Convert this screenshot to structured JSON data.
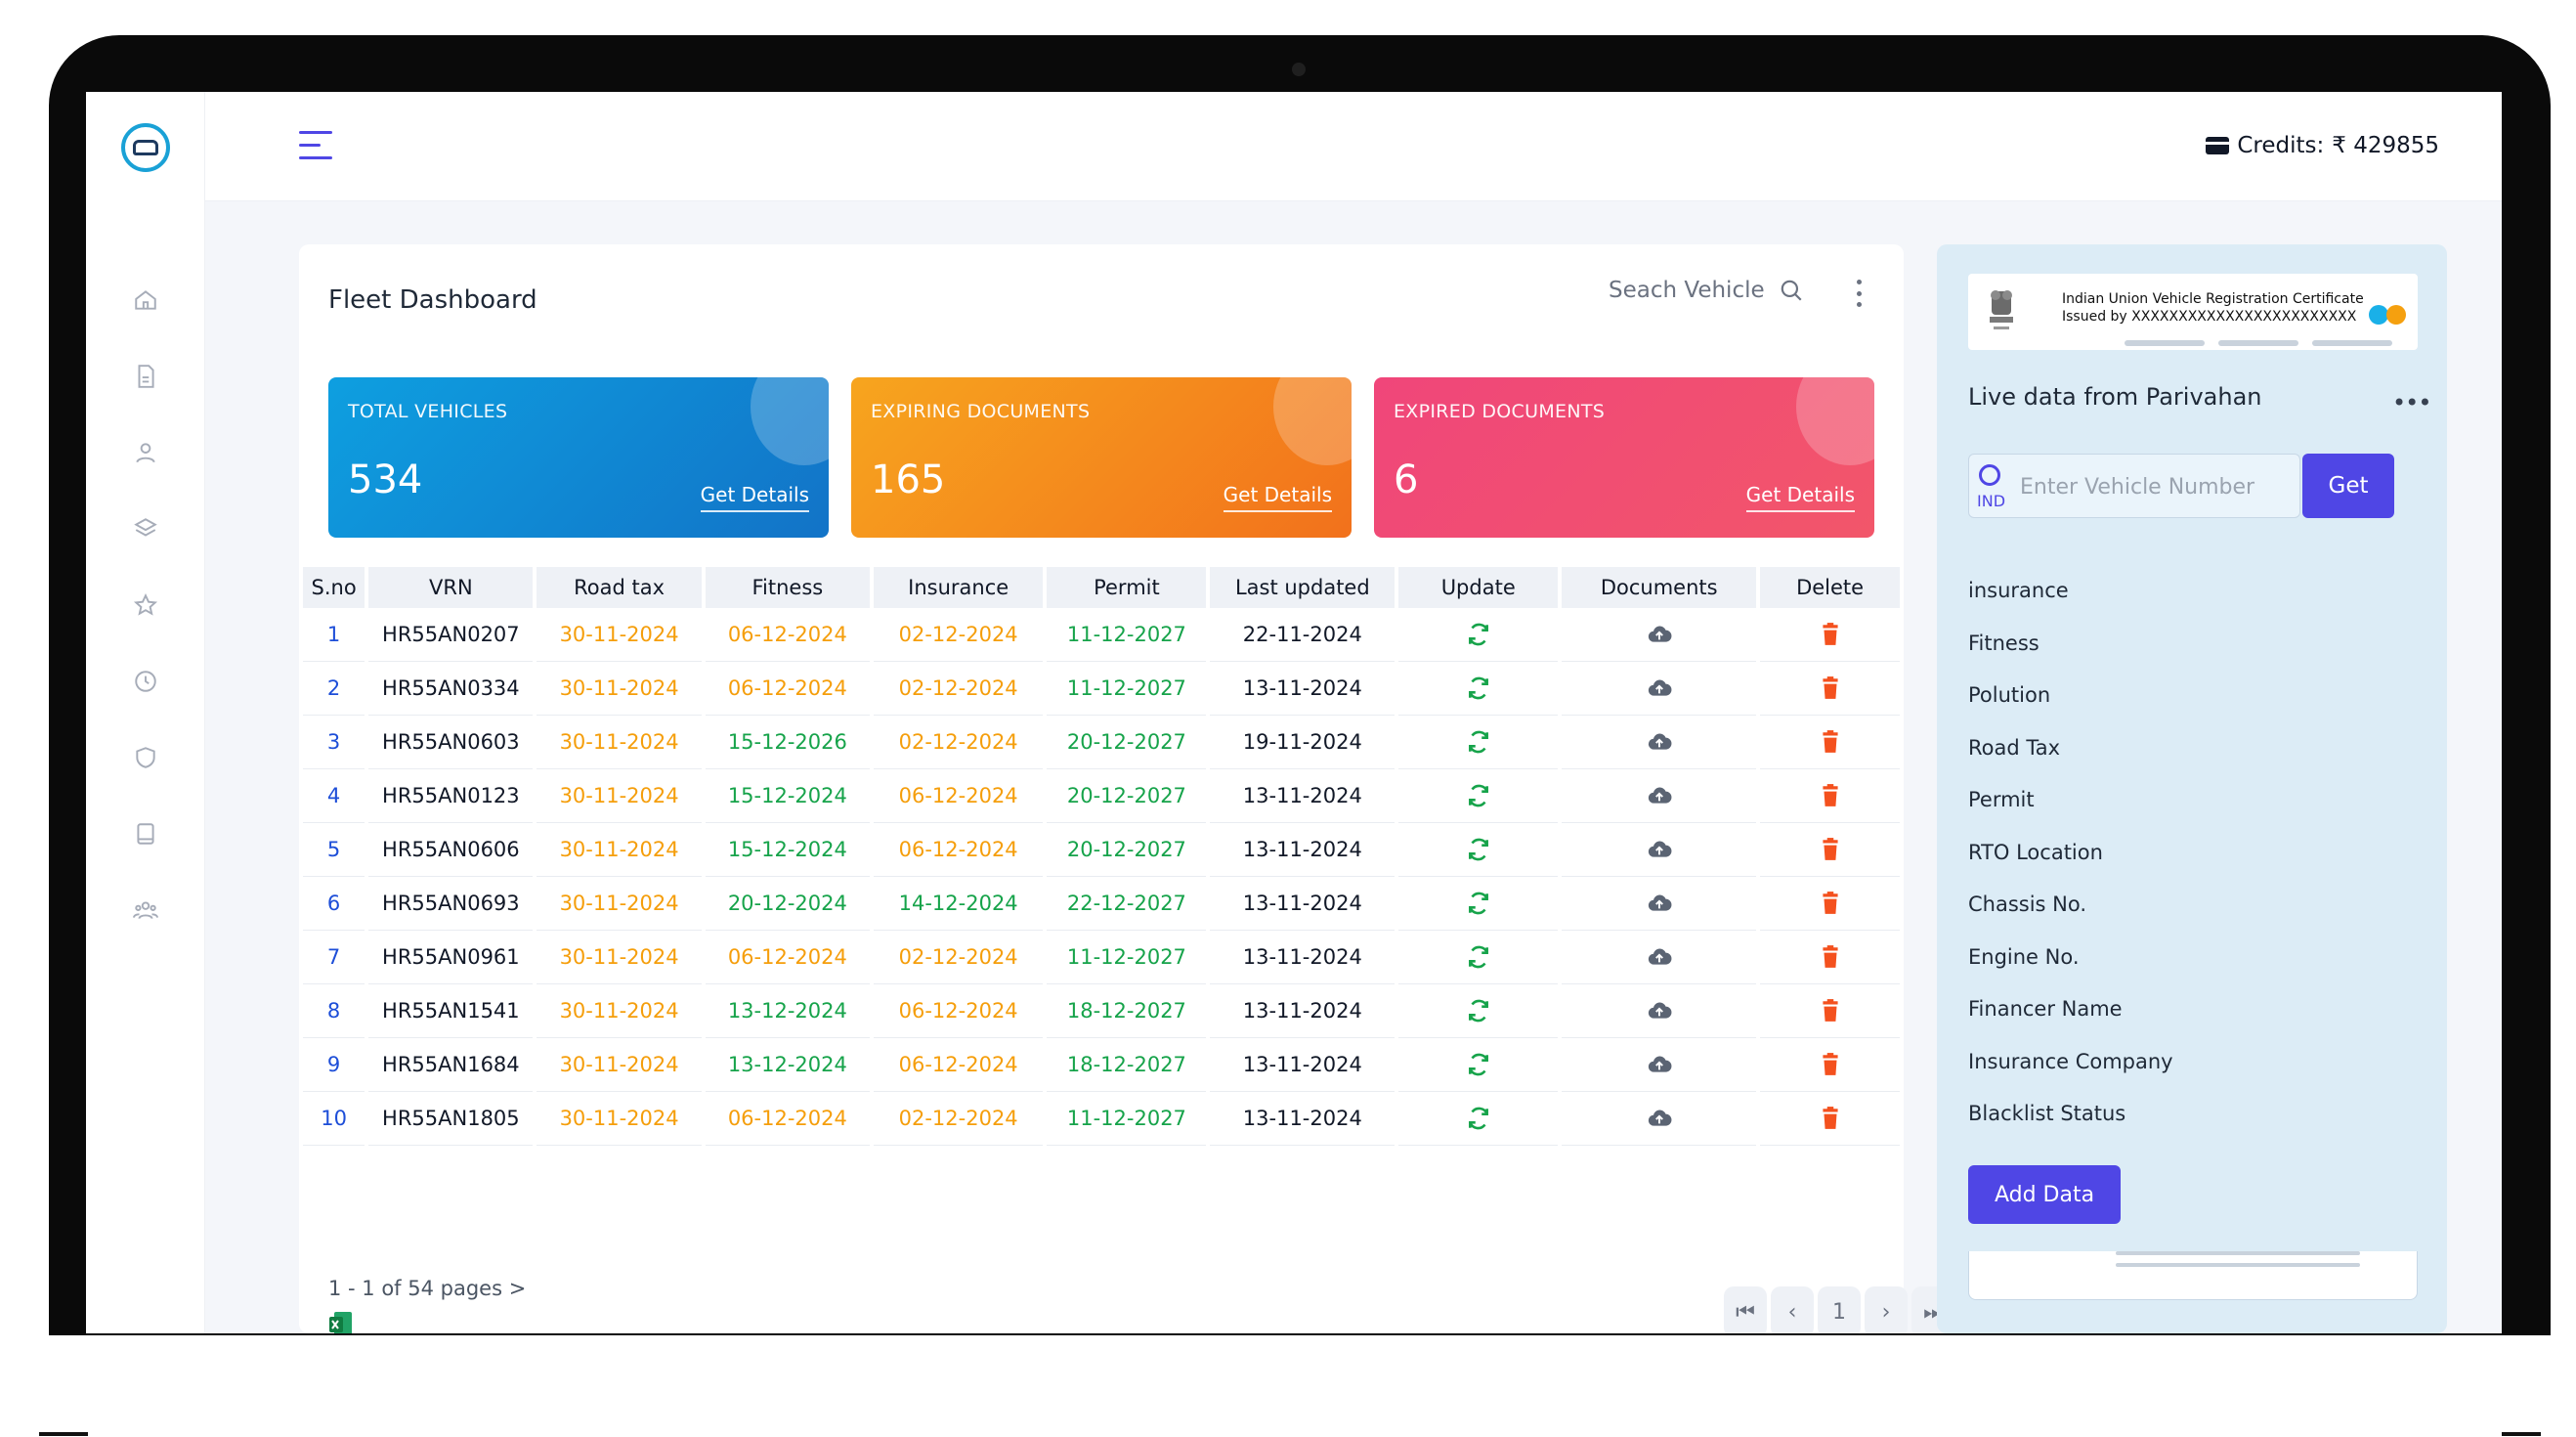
{
  "topbar": {
    "credits_label": "Credits:",
    "credits_value": "₹ 429855"
  },
  "dashboard": {
    "title": "Fleet Dashboard",
    "search_placeholder": "Seach Vehicle",
    "stats": [
      {
        "label": "TOTAL VEHICLES",
        "value": "534",
        "link": "Get Details",
        "color": "#0e9fe0"
      },
      {
        "label": "EXPIRING DOCUMENTS",
        "value": "165",
        "link": "Get Details",
        "color": "#f7a51e"
      },
      {
        "label": "EXPIRED DOCUMENTS",
        "value": "6",
        "link": "Get Details",
        "color": "#f0467a"
      }
    ],
    "columns": [
      "S.no",
      "VRN",
      "Road tax",
      "Fitness",
      "Insurance",
      "Permit",
      "Last updated",
      "Update",
      "Documents",
      "Delete"
    ],
    "rows": [
      {
        "sno": "1",
        "vrn": "HR55AN0207",
        "road_tax": "30-11-2024",
        "fitness": "06-12-2024",
        "insurance": "02-12-2024",
        "permit": "11-12-2027",
        "updated": "22-11-2024",
        "fitness_status": "orange",
        "insurance_status": "orange"
      },
      {
        "sno": "2",
        "vrn": "HR55AN0334",
        "road_tax": "30-11-2024",
        "fitness": "06-12-2024",
        "insurance": "02-12-2024",
        "permit": "11-12-2027",
        "updated": "13-11-2024",
        "fitness_status": "orange",
        "insurance_status": "orange"
      },
      {
        "sno": "3",
        "vrn": "HR55AN0603",
        "road_tax": "30-11-2024",
        "fitness": "15-12-2026",
        "insurance": "02-12-2024",
        "permit": "20-12-2027",
        "updated": "19-11-2024",
        "fitness_status": "green",
        "insurance_status": "orange"
      },
      {
        "sno": "4",
        "vrn": "HR55AN0123",
        "road_tax": "30-11-2024",
        "fitness": "15-12-2024",
        "insurance": "06-12-2024",
        "permit": "20-12-2027",
        "updated": "13-11-2024",
        "fitness_status": "green",
        "insurance_status": "orange"
      },
      {
        "sno": "5",
        "vrn": "HR55AN0606",
        "road_tax": "30-11-2024",
        "fitness": "15-12-2024",
        "insurance": "06-12-2024",
        "permit": "20-12-2027",
        "updated": "13-11-2024",
        "fitness_status": "green",
        "insurance_status": "orange"
      },
      {
        "sno": "6",
        "vrn": "HR55AN0693",
        "road_tax": "30-11-2024",
        "fitness": "20-12-2024",
        "insurance": "14-12-2024",
        "permit": "22-12-2027",
        "updated": "13-11-2024",
        "fitness_status": "green",
        "insurance_status": "green"
      },
      {
        "sno": "7",
        "vrn": "HR55AN0961",
        "road_tax": "30-11-2024",
        "fitness": "06-12-2024",
        "insurance": "02-12-2024",
        "permit": "11-12-2027",
        "updated": "13-11-2024",
        "fitness_status": "orange",
        "insurance_status": "orange"
      },
      {
        "sno": "8",
        "vrn": "HR55AN1541",
        "road_tax": "30-11-2024",
        "fitness": "13-12-2024",
        "insurance": "06-12-2024",
        "permit": "18-12-2027",
        "updated": "13-11-2024",
        "fitness_status": "green",
        "insurance_status": "orange"
      },
      {
        "sno": "9",
        "vrn": "HR55AN1684",
        "road_tax": "30-11-2024",
        "fitness": "13-12-2024",
        "insurance": "06-12-2024",
        "permit": "18-12-2027",
        "updated": "13-11-2024",
        "fitness_status": "green",
        "insurance_status": "orange"
      },
      {
        "sno": "10",
        "vrn": "HR55AN1805",
        "road_tax": "30-11-2024",
        "fitness": "06-12-2024",
        "insurance": "02-12-2024",
        "permit": "11-12-2027",
        "updated": "13-11-2024",
        "fitness_status": "orange",
        "insurance_status": "orange"
      }
    ],
    "pagination": {
      "info": "1 - 1 of 54 pages >",
      "current_page": "1"
    }
  },
  "right_panel": {
    "rc_line1": "Indian Union Vehicle Registration Certificate",
    "rc_line2": "Issued by XXXXXXXXXXXXXXXXXXXXXXXX",
    "title": "Live data from Parivahan",
    "country_code": "IND",
    "vin_placeholder": "Enter Vehicle Number",
    "get_label": "Get",
    "fields": [
      "insurance",
      "Fitness",
      "Polution",
      "Road Tax",
      "Permit",
      "RTO Location",
      "Chassis No.",
      "Engine No.",
      "Financer Name",
      "Insurance Company",
      "Blacklist Status"
    ],
    "add_label": "Add Data"
  },
  "colors": {
    "accent": "#4f46e5",
    "orange": "#f59e0b",
    "green": "#16a34a",
    "delete": "#f4511e"
  },
  "sidebar_icons": [
    "home-icon",
    "document-icon",
    "user-icon",
    "layers-icon",
    "star-icon",
    "clock-icon",
    "shield-icon",
    "book-icon",
    "team-icon"
  ]
}
